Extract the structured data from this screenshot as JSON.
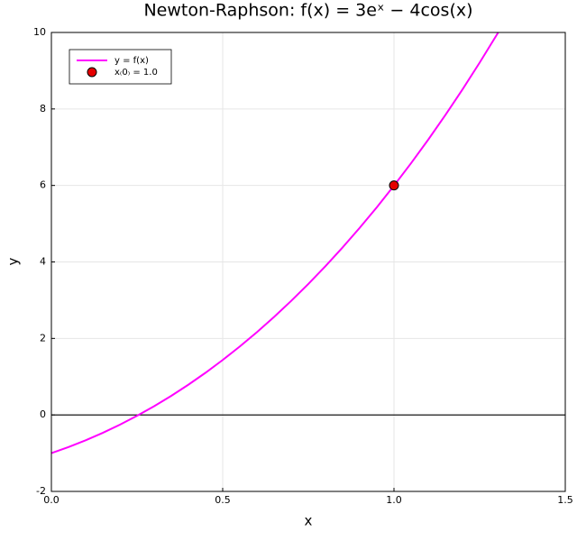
{
  "chart_data": {
    "type": "line",
    "title": "Newton-Raphson: f(x) = 3eˣ − 4cos(x)",
    "x_label": "x",
    "y_label": "y",
    "x": [
      0,
      0.05,
      0.1,
      0.15,
      0.2,
      0.25,
      0.3,
      0.35,
      0.4,
      0.45,
      0.5,
      0.55,
      0.6,
      0.65,
      0.7,
      0.75,
      0.8,
      0.85,
      0.9,
      0.95,
      1.0,
      1.05,
      1.1,
      1.15,
      1.2,
      1.25,
      1.3,
      1.31
    ],
    "series": [
      {
        "name": "y = f(x)",
        "color": "#ff00ff",
        "values": [
          -1,
          -0.8412,
          -0.6645,
          -0.4696,
          -0.2561,
          -0.0235,
          0.2283,
          0.4997,
          0.7912,
          1.1031,
          1.4359,
          1.7897,
          2.165,
          2.5623,
          2.9819,
          3.4242,
          3.8898,
          4.379,
          4.8924,
          5.4304,
          5.9937,
          6.5827,
          7.1981,
          7.8406,
          8.511,
          9.2097,
          9.9379,
          10.0871
        ]
      }
    ],
    "points": [
      {
        "name": "x₍0₎ = 1.0",
        "color": "#e60000",
        "x": [
          1.0
        ],
        "values": [
          6.0
        ]
      }
    ],
    "hline": 0,
    "xlim": [
      0,
      1.5
    ],
    "ylim": [
      -2,
      10
    ],
    "xticks": [
      {
        "value": 0,
        "label": "0.0"
      },
      0.5,
      {
        "value": 1,
        "label": "1.0"
      },
      1.5
    ],
    "yticks": [
      -2,
      0,
      2,
      4,
      6,
      8,
      10
    ],
    "grid": true,
    "legend": "top-left"
  }
}
